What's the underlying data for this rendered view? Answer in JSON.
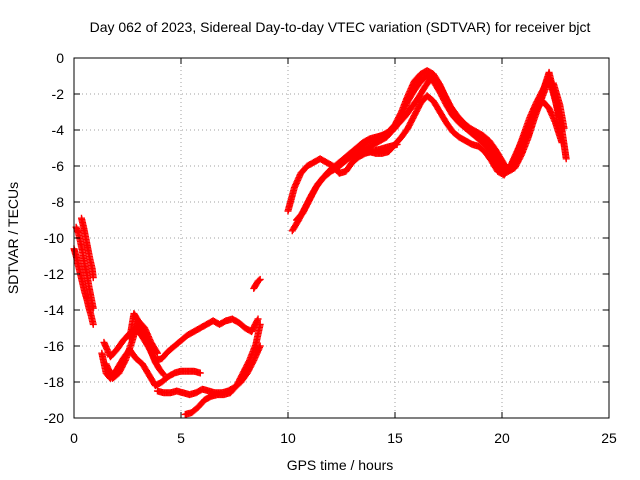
{
  "chart_data": {
    "type": "scatter",
    "title": "Day 062 of 2023, Sidereal Day-to-day VTEC variation (SDTVAR) for receiver bjct",
    "xlabel": "GPS time / hours",
    "ylabel": "SDTVAR / TECUs",
    "xlim": [
      0,
      25
    ],
    "ylim": [
      -20,
      0
    ],
    "xticks": [
      "0",
      "5",
      "10",
      "15",
      "20",
      "25"
    ],
    "yticks": [
      "0",
      "-2",
      "-4",
      "-6",
      "-8",
      "-10",
      "-12",
      "-14",
      "-16",
      "-18",
      "-20"
    ],
    "grid": true,
    "marker": "+",
    "color": "#ff0000",
    "series": [
      {
        "x": [
          0.0,
          0.1,
          0.2,
          0.3,
          0.4,
          0.5,
          0.6,
          0.7,
          0.8,
          0.9
        ],
        "y": [
          -10.6,
          -11.0,
          -11.5,
          -12.0,
          -12.5,
          -13.0,
          -13.4,
          -13.9,
          -14.3,
          -14.8
        ]
      },
      {
        "x": [
          0.1,
          0.2,
          0.3,
          0.4,
          0.5,
          0.6,
          0.7,
          0.8,
          0.9
        ],
        "y": [
          -9.4,
          -9.7,
          -10.2,
          -10.8,
          -11.5,
          -12.0,
          -12.7,
          -13.3,
          -13.9
        ]
      },
      {
        "x": [
          0.35,
          0.45,
          0.55,
          0.65,
          0.75,
          0.85,
          0.9
        ],
        "y": [
          -8.9,
          -9.4,
          -10.0,
          -10.6,
          -11.2,
          -11.7,
          -12.2
        ]
      },
      {
        "x": [
          1.3,
          1.5,
          1.7,
          2.0,
          2.3,
          2.6,
          2.9,
          3.2,
          3.5,
          3.8,
          4.1,
          4.4,
          4.7,
          5.0,
          5.3,
          5.6,
          5.9
        ],
        "y": [
          -16.4,
          -17.5,
          -17.8,
          -17.3,
          -16.7,
          -16.2,
          -16.7,
          -17.0,
          -17.6,
          -18.2,
          -18.0,
          -17.7,
          -17.5,
          -17.4,
          -17.4,
          -17.4,
          -17.5
        ]
      },
      {
        "x": [
          1.4,
          1.7,
          2.0,
          2.3,
          2.6,
          2.9,
          3.2,
          3.5,
          3.8,
          4.1,
          4.4,
          4.7,
          5.0,
          5.3,
          5.6,
          5.9,
          6.2,
          6.5,
          6.8,
          7.1,
          7.4,
          7.7,
          8.0,
          8.3,
          8.6
        ],
        "y": [
          -15.8,
          -16.6,
          -16.2,
          -15.7,
          -15.3,
          -15.0,
          -15.5,
          -16.1,
          -16.8,
          -16.7,
          -16.3,
          -16.0,
          -15.7,
          -15.4,
          -15.2,
          -15.0,
          -14.8,
          -14.6,
          -14.8,
          -14.6,
          -14.5,
          -14.7,
          -15.0,
          -15.2,
          -14.5
        ]
      },
      {
        "x": [
          1.5,
          1.8,
          2.1,
          2.4,
          2.7,
          3.0,
          3.3,
          3.6,
          3.9
        ],
        "y": [
          -17.0,
          -17.8,
          -17.5,
          -16.8,
          -15.8,
          -14.6,
          -15.0,
          -15.8,
          -16.4
        ]
      },
      {
        "x": [
          2.6,
          2.8,
          3.0,
          3.2,
          3.4,
          3.6,
          3.8,
          4.0,
          4.2
        ],
        "y": [
          -15.6,
          -14.2,
          -14.6,
          -15.2,
          -15.7,
          -16.3,
          -16.9,
          -17.3,
          -17.6
        ]
      },
      {
        "x": [
          3.9,
          4.2,
          4.5,
          4.8,
          5.1,
          5.4,
          5.7,
          6.0,
          6.3,
          6.6,
          6.9,
          7.2,
          7.5,
          7.8,
          8.1,
          8.4,
          8.7
        ],
        "y": [
          -18.5,
          -18.6,
          -18.6,
          -18.5,
          -18.6,
          -18.7,
          -18.6,
          -18.4,
          -18.5,
          -18.6,
          -18.6,
          -18.5,
          -18.3,
          -18.0,
          -17.5,
          -16.8,
          -16.0
        ]
      },
      {
        "x": [
          5.2,
          5.5,
          5.8,
          6.1,
          6.4,
          6.7,
          7.0,
          7.3,
          7.6,
          7.9,
          8.2,
          8.5,
          8.7
        ],
        "y": [
          -19.8,
          -19.7,
          -19.4,
          -19.0,
          -18.8,
          -18.7,
          -18.7,
          -18.6,
          -18.2,
          -17.5,
          -16.8,
          -15.9,
          -14.8
        ]
      },
      {
        "x": [
          8.4,
          8.5,
          8.6,
          8.7
        ],
        "y": [
          -12.8,
          -12.6,
          -12.4,
          -12.3
        ]
      },
      {
        "x": [
          10.0,
          10.3,
          10.6,
          10.9,
          11.2,
          11.5,
          11.8,
          12.1,
          12.4,
          12.7,
          13.0,
          13.3,
          13.6,
          13.9,
          14.2,
          14.5,
          14.8,
          15.1
        ],
        "y": [
          -8.5,
          -7.2,
          -6.4,
          -6.0,
          -5.8,
          -5.6,
          -5.8,
          -6.0,
          -6.4,
          -6.3,
          -5.8,
          -5.5,
          -5.3,
          -5.2,
          -5.1,
          -5.0,
          -4.9,
          -4.8
        ]
      },
      {
        "x": [
          10.2,
          10.5,
          10.8,
          11.1,
          11.4,
          11.7,
          12.0,
          12.3,
          12.6,
          12.9,
          13.2,
          13.5,
          13.8,
          14.1,
          14.4,
          14.7,
          15.0,
          15.3,
          15.6,
          15.9,
          16.2,
          16.5,
          16.8,
          17.1,
          17.4,
          17.7,
          18.0,
          18.3,
          18.6,
          18.9,
          19.2,
          19.5,
          19.8,
          20.1,
          20.4,
          20.7,
          21.0,
          21.3,
          21.6,
          21.9,
          22.2,
          22.5,
          22.8
        ],
        "y": [
          -9.6,
          -9.0,
          -8.3,
          -7.6,
          -7.0,
          -6.6,
          -6.3,
          -6.1,
          -5.8,
          -5.5,
          -5.3,
          -5.2,
          -5.2,
          -5.3,
          -5.3,
          -5.2,
          -4.8,
          -4.4,
          -3.9,
          -3.2,
          -2.5,
          -2.1,
          -2.4,
          -3.0,
          -3.6,
          -4.1,
          -4.4,
          -4.6,
          -4.8,
          -4.9,
          -5.2,
          -5.7,
          -6.3,
          -6.5,
          -6.0,
          -5.2,
          -4.4,
          -3.6,
          -2.9,
          -2.4,
          -2.8,
          -3.6,
          -4.7
        ]
      },
      {
        "x": [
          10.4,
          10.7,
          11.0,
          11.3,
          11.6,
          11.9,
          12.2,
          12.5,
          12.8,
          13.1,
          13.4,
          13.7,
          14.0,
          14.3,
          14.6,
          14.9,
          15.2,
          15.5,
          15.8,
          16.1,
          16.4,
          16.7,
          17.0,
          17.3,
          17.6,
          17.9,
          18.2,
          18.5,
          18.8,
          19.1,
          19.4,
          19.7,
          20.0,
          20.3,
          20.6,
          20.9,
          21.2,
          21.5,
          21.8,
          22.1,
          22.4,
          22.7,
          22.9
        ],
        "y": [
          -9.0,
          -8.6,
          -7.9,
          -7.2,
          -6.7,
          -6.3,
          -6.0,
          -5.8,
          -5.6,
          -5.4,
          -5.2,
          -5.0,
          -4.8,
          -4.6,
          -4.4,
          -4.0,
          -3.6,
          -3.2,
          -2.7,
          -2.2,
          -1.6,
          -1.1,
          -1.3,
          -2.0,
          -2.7,
          -3.2,
          -3.6,
          -3.9,
          -4.1,
          -4.3,
          -4.6,
          -5.1,
          -5.7,
          -6.3,
          -6.1,
          -5.4,
          -4.5,
          -3.4,
          -2.4,
          -1.5,
          -1.4,
          -2.6,
          -3.9
        ]
      },
      {
        "x": [
          12.0,
          12.3,
          12.6,
          12.9,
          13.2,
          13.5,
          13.8,
          14.1,
          14.4,
          14.7,
          15.0,
          15.3,
          15.6,
          15.9,
          16.2,
          16.5,
          16.8,
          17.1,
          17.4,
          17.7,
          18.0,
          18.3,
          18.6,
          18.9,
          19.2,
          19.5,
          19.8,
          20.1,
          20.4,
          20.7,
          21.0,
          21.3,
          21.6,
          21.9,
          22.2,
          22.5,
          22.8
        ],
        "y": [
          -6.2,
          -5.9,
          -5.6,
          -5.3,
          -5.0,
          -4.7,
          -4.5,
          -4.4,
          -4.3,
          -4.2,
          -3.9,
          -3.2,
          -2.4,
          -1.8,
          -1.3,
          -1.0,
          -1.3,
          -1.9,
          -2.6,
          -3.2,
          -3.6,
          -3.9,
          -4.1,
          -4.4,
          -4.6,
          -5.0,
          -5.6,
          -6.2,
          -6.0,
          -5.3,
          -4.3,
          -3.3,
          -2.5,
          -1.8,
          -1.1,
          -2.4,
          -4.0
        ]
      },
      {
        "x": [
          13.2,
          13.5,
          13.8,
          14.1,
          14.4,
          14.7,
          15.0,
          15.3,
          15.6,
          15.9,
          16.2,
          16.5,
          16.8,
          17.1,
          17.4,
          17.7,
          18.0,
          18.3,
          18.6,
          18.9,
          19.2,
          19.5,
          19.8,
          20.1,
          20.4,
          20.7,
          21.0,
          21.3,
          21.6,
          21.9,
          22.2,
          22.5,
          22.8,
          23.0
        ],
        "y": [
          -5.2,
          -4.8,
          -4.6,
          -4.5,
          -4.3,
          -4.1,
          -3.7,
          -3.0,
          -2.1,
          -1.3,
          -0.9,
          -0.7,
          -0.9,
          -1.5,
          -2.3,
          -3.0,
          -3.5,
          -3.9,
          -4.2,
          -4.5,
          -4.8,
          -5.2,
          -5.8,
          -6.4,
          -6.2,
          -5.5,
          -4.6,
          -3.7,
          -2.8,
          -1.9,
          -0.8,
          -2.3,
          -4.0,
          -5.6
        ]
      }
    ]
  }
}
